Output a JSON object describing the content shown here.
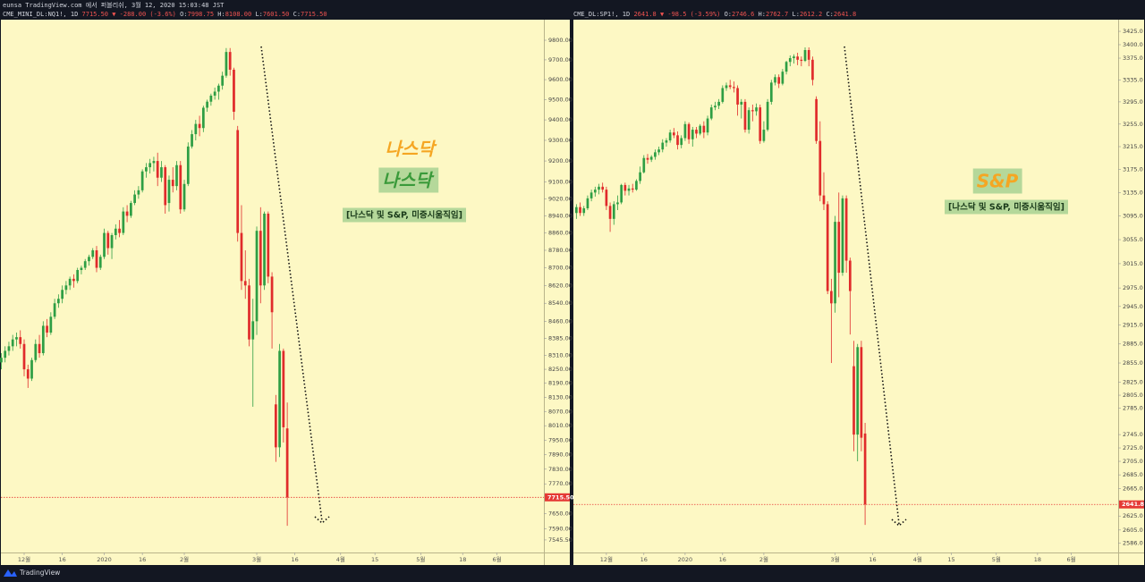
{
  "header": "eunsa TradingView.com 에서 퍼블리쉬, 3월 12, 2020 15:03:48 JST",
  "footer": "TradingView",
  "chart_data": [
    {
      "type": "candlestick",
      "legend": {
        "symbol": "CME_MINI_DL:NQ1!, 1D",
        "change": "7715.50 ▼ -288.00 (-3.6%)",
        "ohlc": [
          {
            "key": "O:",
            "value": "7998.75"
          },
          {
            "key": "H:",
            "value": "8108.00"
          },
          {
            "key": "L:",
            "value": "7601.50"
          },
          {
            "key": "C:",
            "value": "7715.50"
          }
        ]
      },
      "annotations": [
        "나스닥",
        "나스닥",
        "[나스닥 및 S&P, 미증시움직임]"
      ],
      "log": true,
      "grid": false,
      "up_color": "#2e9e44",
      "down_color": "#e02b2b",
      "price_line_color": "#e53935",
      "last_price": {
        "value": 7715.5,
        "label": "7715.50"
      },
      "xlim": [
        -0.1,
        142.3
      ],
      "xticks": [
        {
          "value": 6,
          "label": "12월"
        },
        {
          "value": 16,
          "label": "16"
        },
        {
          "value": 27,
          "label": "2020"
        },
        {
          "value": 37,
          "label": "16"
        },
        {
          "value": 48,
          "label": "2월"
        },
        {
          "value": 67,
          "label": "3월"
        },
        {
          "value": 77,
          "label": "16"
        },
        {
          "value": 89,
          "label": "4월"
        },
        {
          "value": 98,
          "label": "15"
        },
        {
          "value": 110,
          "label": "5월"
        },
        {
          "value": 121,
          "label": "18"
        },
        {
          "value": 130,
          "label": "6월"
        }
      ],
      "ylim": [
        7496,
        9906
      ],
      "yticks": [
        {
          "value": 9800,
          "label": "9800.00"
        },
        {
          "value": 9700,
          "label": "9700.00"
        },
        {
          "value": 9600,
          "label": "9600.00"
        },
        {
          "value": 9500,
          "label": "9500.00"
        },
        {
          "value": 9400,
          "label": "9400.00"
        },
        {
          "value": 9300,
          "label": "9300.00"
        },
        {
          "value": 9200,
          "label": "9200.00"
        },
        {
          "value": 9100,
          "label": "9100.00"
        },
        {
          "value": 9020,
          "label": "9020.00"
        },
        {
          "value": 8940,
          "label": "8940.00"
        },
        {
          "value": 8860,
          "label": "8860.00"
        },
        {
          "value": 8780,
          "label": "8780.00"
        },
        {
          "value": 8700,
          "label": "8700.00"
        },
        {
          "value": 8620,
          "label": "8620.00"
        },
        {
          "value": 8540,
          "label": "8540.00"
        },
        {
          "value": 8460,
          "label": "8460.00"
        },
        {
          "value": 8385,
          "label": "8385.00"
        },
        {
          "value": 8310,
          "label": "8310.00"
        },
        {
          "value": 8250,
          "label": "8250.00"
        },
        {
          "value": 8190,
          "label": "8190.00"
        },
        {
          "value": 8130,
          "label": "8130.00"
        },
        {
          "value": 8070,
          "label": "8070.00"
        },
        {
          "value": 8010,
          "label": "8010.00"
        },
        {
          "value": 7950,
          "label": "7950.00"
        },
        {
          "value": 7890,
          "label": "7890.00"
        },
        {
          "value": 7830,
          "label": "7830.00"
        },
        {
          "value": 7770,
          "label": "7770.00"
        },
        {
          "value": 7650,
          "label": "7650.00"
        },
        {
          "value": 7590,
          "label": "7590.00"
        },
        {
          "value": 7545.5,
          "label": "7545.50"
        }
      ],
      "open": [
        8280,
        8300,
        8330,
        8350,
        8380,
        8390,
        8360,
        8250,
        8210,
        8290,
        8360,
        8320,
        8440,
        8410,
        8480,
        8540,
        8560,
        8600,
        8620,
        8650,
        8640,
        8690,
        8700,
        8730,
        8750,
        8780,
        8700,
        8750,
        8860,
        8790,
        8850,
        8880,
        8860,
        8960,
        8940,
        9000,
        9040,
        9060,
        9150,
        9170,
        9190,
        9200,
        9120,
        9170,
        9000,
        9110,
        9080,
        9180,
        8970,
        9090,
        9270,
        9330,
        9380,
        9360,
        9460,
        9490,
        9520,
        9540,
        9570,
        9620,
        9740,
        9650,
        9350,
        8860,
        8640,
        8620,
        8380,
        8460,
        8870,
        8620,
        8950,
        8660,
        8100,
        7920,
        8330,
        7998.75
      ],
      "high": [
        8320,
        8350,
        8370,
        8400,
        8410,
        8420,
        8380,
        8270,
        8300,
        8380,
        8400,
        8460,
        8470,
        8500,
        8560,
        8580,
        8620,
        8640,
        8660,
        8670,
        8700,
        8710,
        8740,
        8760,
        8790,
        8800,
        8760,
        8880,
        8870,
        8860,
        8900,
        8920,
        8980,
        8990,
        9010,
        9060,
        9080,
        9160,
        9190,
        9210,
        9220,
        9240,
        9200,
        9180,
        9130,
        9170,
        9200,
        9200,
        9110,
        9290,
        9350,
        9400,
        9420,
        9470,
        9500,
        9530,
        9560,
        9580,
        9640,
        9760,
        9760,
        9660,
        9370,
        8990,
        8780,
        8650,
        8560,
        8890,
        8980,
        8960,
        8960,
        8680,
        8140,
        8360,
        8340,
        8108
      ],
      "low": [
        8250,
        8280,
        8310,
        8330,
        8350,
        8340,
        8220,
        8170,
        8200,
        8280,
        8300,
        8310,
        8390,
        8400,
        8470,
        8520,
        8540,
        8580,
        8600,
        8610,
        8630,
        8670,
        8690,
        8710,
        8740,
        8680,
        8690,
        8740,
        8760,
        8740,
        8830,
        8840,
        8850,
        8910,
        8930,
        8990,
        9020,
        9050,
        9120,
        9140,
        9150,
        9080,
        9100,
        8950,
        8960,
        9050,
        9060,
        8950,
        8960,
        9080,
        9260,
        9300,
        9320,
        9340,
        9440,
        9470,
        9500,
        9500,
        9550,
        9610,
        9620,
        9400,
        8820,
        8600,
        8560,
        8350,
        8090,
        8400,
        8540,
        8600,
        8630,
        8340,
        7860,
        7880,
        7940,
        7601.5
      ],
      "close": [
        8300,
        8330,
        8350,
        8380,
        8390,
        8360,
        8250,
        8210,
        8290,
        8360,
        8320,
        8440,
        8410,
        8480,
        8540,
        8560,
        8600,
        8620,
        8650,
        8640,
        8690,
        8700,
        8730,
        8750,
        8780,
        8700,
        8750,
        8860,
        8790,
        8850,
        8880,
        8860,
        8960,
        8940,
        9000,
        9040,
        9060,
        9150,
        9170,
        9190,
        9200,
        9120,
        9170,
        8990,
        9110,
        9080,
        9180,
        8970,
        9090,
        9270,
        9330,
        9380,
        9360,
        9460,
        9490,
        9520,
        9540,
        9570,
        9620,
        9740,
        9650,
        9440,
        8860,
        8640,
        8620,
        8380,
        8460,
        8870,
        8620,
        8950,
        8660,
        8500,
        7920,
        8330,
        8003.5,
        7715.5
      ]
    },
    {
      "type": "candlestick",
      "legend": {
        "symbol": "CME_DL:SP1!, 1D",
        "change": "2641.8 ▼ -98.5 (-3.59%)",
        "ohlc": [
          {
            "key": "O:",
            "value": "2746.6"
          },
          {
            "key": "H:",
            "value": "2762.7"
          },
          {
            "key": "L:",
            "value": "2612.2"
          },
          {
            "key": "C:",
            "value": "2641.8"
          }
        ]
      },
      "annotations": [
        "S&P",
        "[나스닥 및 S&P, 미증시움직임]"
      ],
      "log": true,
      "grid": false,
      "up_color": "#2e9e44",
      "down_color": "#e02b2b",
      "price_line_color": "#e53935",
      "last_price": 2641.8,
      "xlim": [
        -0.8,
        144.5
      ],
      "xticks": [
        {
          "value": 8,
          "label": "12월"
        },
        {
          "value": 18,
          "label": "16"
        },
        {
          "value": 29,
          "label": "2020"
        },
        {
          "value": 39,
          "label": "16"
        },
        {
          "value": 50,
          "label": "2월"
        },
        {
          "value": 69,
          "label": "3월"
        },
        {
          "value": 79,
          "label": "16"
        },
        {
          "value": 91,
          "label": "4월"
        },
        {
          "value": 100,
          "label": "15"
        },
        {
          "value": 112,
          "label": "5월"
        },
        {
          "value": 123,
          "label": "18"
        },
        {
          "value": 132,
          "label": "6월"
        }
      ],
      "ylim": [
        2573,
        3447
      ],
      "yticks": [
        {
          "value": 3425,
          "label": "3425.0"
        },
        {
          "value": 3400,
          "label": "3400.0"
        },
        {
          "value": 3375,
          "label": "3375.0"
        },
        {
          "value": 3335,
          "label": "3335.0"
        },
        {
          "value": 3295,
          "label": "3295.0"
        },
        {
          "value": 3255,
          "label": "3255.0"
        },
        {
          "value": 3215,
          "label": "3215.0"
        },
        {
          "value": 3175,
          "label": "3175.0"
        },
        {
          "value": 3135,
          "label": "3135.0"
        },
        {
          "value": 3095,
          "label": "3095.0"
        },
        {
          "value": 3055,
          "label": "3055.0"
        },
        {
          "value": 3015,
          "label": "3015.0"
        },
        {
          "value": 2975,
          "label": "2975.0"
        },
        {
          "value": 2945,
          "label": "2945.0"
        },
        {
          "value": 2915,
          "label": "2915.0"
        },
        {
          "value": 2885,
          "label": "2885.0"
        },
        {
          "value": 2855,
          "label": "2855.0"
        },
        {
          "value": 2825,
          "label": "2825.0"
        },
        {
          "value": 2805,
          "label": "2805.0"
        },
        {
          "value": 2785,
          "label": "2785.0"
        },
        {
          "value": 2745,
          "label": "2745.0"
        },
        {
          "value": 2725,
          "label": "2725.0"
        },
        {
          "value": 2705,
          "label": "2705.0"
        },
        {
          "value": 2685,
          "label": "2685.0"
        },
        {
          "value": 2665,
          "label": "2665.0"
        },
        {
          "value": 2625,
          "label": "2625.0"
        },
        {
          "value": 2605,
          "label": "2605.0"
        },
        {
          "value": 2586,
          "label": "2586.0"
        }
      ],
      "open": [
        3100,
        3110,
        3100,
        3108,
        3125,
        3135,
        3140,
        3145,
        3140,
        3112,
        3090,
        3115,
        3118,
        3148,
        3138,
        3142,
        3140,
        3155,
        3170,
        3195,
        3192,
        3197,
        3205,
        3210,
        3222,
        3226,
        3240,
        3235,
        3218,
        3230,
        3255,
        3228,
        3245,
        3238,
        3252,
        3240,
        3265,
        3285,
        3288,
        3295,
        3320,
        3325,
        3322,
        3320,
        3290,
        3295,
        3245,
        3280,
        3278,
        3285,
        3225,
        3245,
        3295,
        3330,
        3340,
        3328,
        3350,
        3368,
        3375,
        3378,
        3372,
        3370,
        3390,
        3372,
        3300,
        3225,
        3130,
        3115,
        2970,
        2950,
        3085,
        3000,
        3125,
        3020,
        2850,
        2745,
        2880,
        2746.6
      ],
      "high": [
        3115,
        3118,
        3112,
        3130,
        3140,
        3145,
        3150,
        3152,
        3145,
        3118,
        3120,
        3130,
        3150,
        3152,
        3148,
        3150,
        3158,
        3180,
        3200,
        3202,
        3200,
        3210,
        3215,
        3228,
        3230,
        3245,
        3248,
        3242,
        3235,
        3260,
        3258,
        3250,
        3250,
        3255,
        3260,
        3270,
        3290,
        3295,
        3300,
        3325,
        3330,
        3335,
        3332,
        3325,
        3300,
        3300,
        3285,
        3290,
        3292,
        3290,
        3260,
        3300,
        3335,
        3345,
        3345,
        3355,
        3370,
        3380,
        3382,
        3385,
        3378,
        3395,
        3395,
        3378,
        3305,
        3260,
        3170,
        3120,
        2990,
        3095,
        3135,
        3130,
        3130,
        3025,
        2890,
        2885,
        2890,
        2762.7
      ],
      "low": [
        3090,
        3095,
        3095,
        3105,
        3120,
        3128,
        3132,
        3135,
        3105,
        3068,
        3080,
        3105,
        3115,
        3130,
        3130,
        3135,
        3138,
        3150,
        3168,
        3185,
        3188,
        3192,
        3200,
        3205,
        3215,
        3222,
        3230,
        3210,
        3212,
        3225,
        3220,
        3215,
        3230,
        3235,
        3230,
        3235,
        3262,
        3280,
        3282,
        3292,
        3315,
        3318,
        3312,
        3270,
        3265,
        3240,
        3238,
        3260,
        3270,
        3220,
        3222,
        3242,
        3290,
        3325,
        3320,
        3325,
        3345,
        3360,
        3365,
        3362,
        3360,
        3368,
        3360,
        3325,
        3220,
        3120,
        3105,
        2965,
        2855,
        2935,
        2960,
        2995,
        3000,
        2900,
        2720,
        2705,
        2720,
        2612.2
      ],
      "close": [
        3110,
        3100,
        3108,
        3125,
        3135,
        3140,
        3145,
        3140,
        3112,
        3090,
        3115,
        3118,
        3148,
        3138,
        3142,
        3140,
        3155,
        3170,
        3195,
        3192,
        3197,
        3205,
        3210,
        3222,
        3226,
        3240,
        3235,
        3218,
        3230,
        3255,
        3228,
        3245,
        3238,
        3252,
        3240,
        3265,
        3285,
        3288,
        3295,
        3320,
        3325,
        3322,
        3320,
        3290,
        3295,
        3245,
        3280,
        3278,
        3285,
        3225,
        3245,
        3295,
        3330,
        3340,
        3328,
        3350,
        3368,
        3375,
        3378,
        3372,
        3370,
        3390,
        3372,
        3335,
        3225,
        3130,
        3115,
        2970,
        2950,
        3085,
        3000,
        3125,
        3020,
        2970,
        2745,
        2880,
        2740.3,
        2641.8
      ]
    }
  ]
}
